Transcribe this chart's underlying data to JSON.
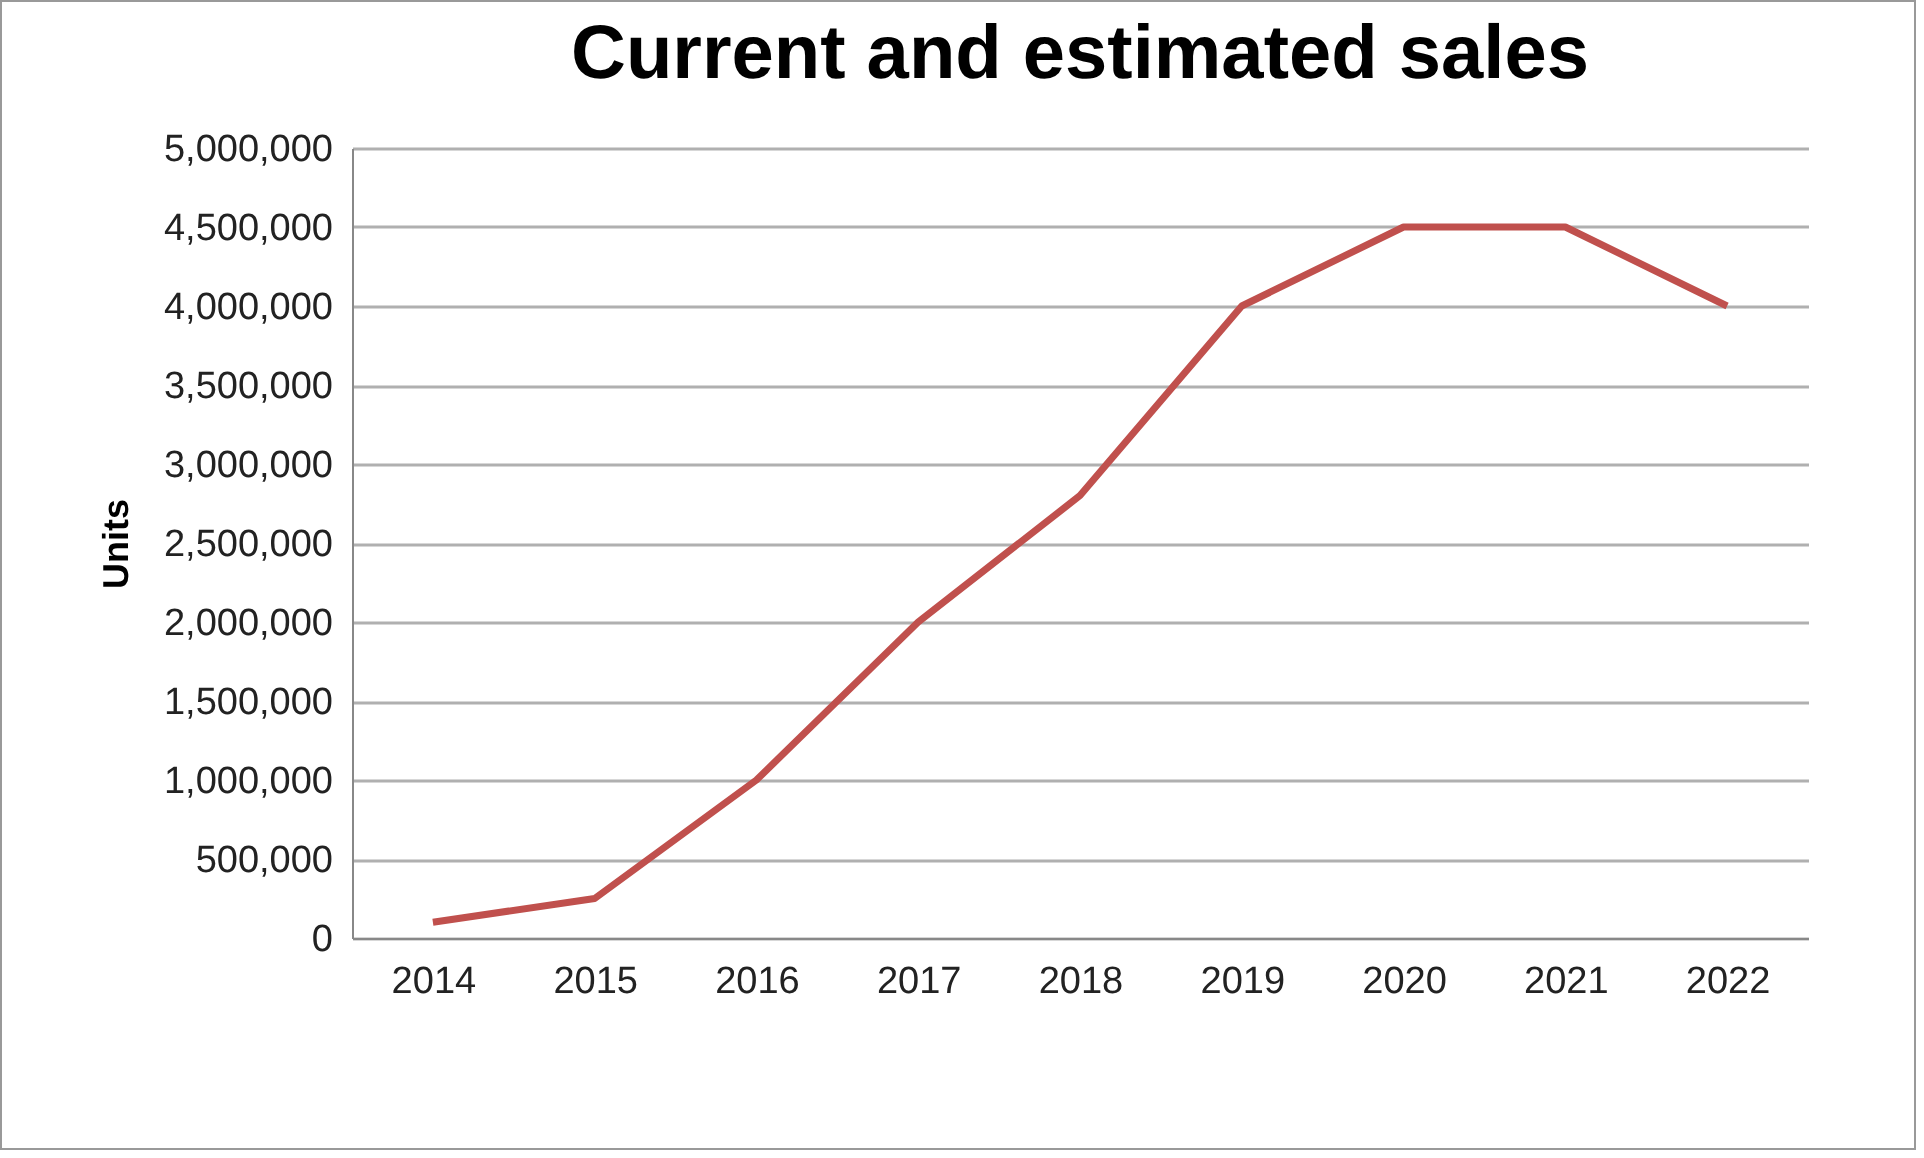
{
  "chart_data": {
    "type": "line",
    "title": "Current and estimated sales",
    "ylabel": "Units",
    "categories": [
      "2014",
      "2015",
      "2016",
      "2017",
      "2018",
      "2019",
      "2020",
      "2021",
      "2022"
    ],
    "series": [
      {
        "color": "#c0504d",
        "values": [
          100000,
          250000,
          1000000,
          2000000,
          2800000,
          4000000,
          4500000,
          4500000,
          4000000
        ]
      }
    ],
    "ylim": [
      0,
      5000000
    ],
    "yticks": [
      0,
      {
        "value": 500000,
        "label": "500,000"
      },
      {
        "value": 1000000,
        "label": "1,000,000"
      },
      {
        "value": 1500000,
        "label": "1,500,000"
      },
      {
        "value": 2000000,
        "label": "2,000,000"
      },
      {
        "value": 2500000,
        "label": "2,500,000"
      },
      {
        "value": 3000000,
        "label": "3,000,000"
      },
      {
        "value": 3500000,
        "label": "3,500,000"
      },
      {
        "value": 4000000,
        "label": "4,000,000"
      },
      {
        "value": 4500000,
        "label": "4,500,000"
      },
      {
        "value": 5000000,
        "label": "5,000,000"
      }
    ],
    "grid": "y",
    "marker": "none",
    "line_style": "solid"
  }
}
